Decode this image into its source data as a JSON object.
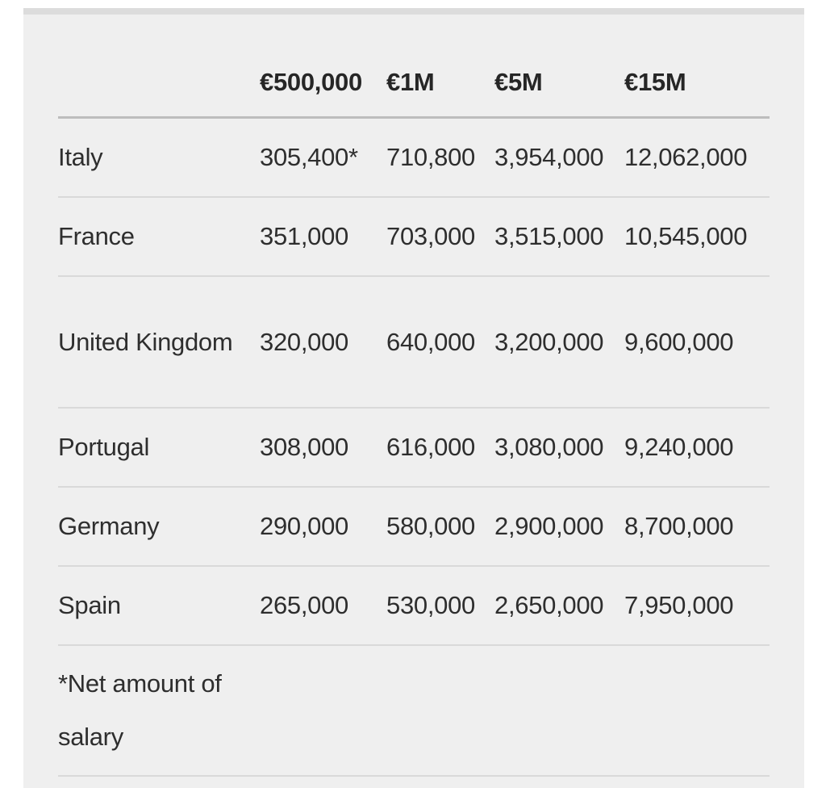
{
  "table": {
    "headers": [
      "",
      "€500,000",
      "€1M",
      "€5M",
      "€15M"
    ],
    "rows": [
      {
        "country": "Italy",
        "values": [
          "305,400*",
          "710,800",
          "3,954,000",
          "12,062,000"
        ]
      },
      {
        "country": "France",
        "values": [
          "351,000",
          "703,000",
          "3,515,000",
          "10,545,000"
        ]
      },
      {
        "country": "United Kingdom",
        "values": [
          "320,000",
          "640,000",
          "3,200,000",
          "9,600,000"
        ]
      },
      {
        "country": "Portugal",
        "values": [
          "308,000",
          "616,000",
          "3,080,000",
          "9,240,000"
        ]
      },
      {
        "country": "Germany",
        "values": [
          "290,000",
          "580,000",
          "2,900,000",
          "8,700,000"
        ]
      },
      {
        "country": "Spain",
        "values": [
          "265,000",
          "530,000",
          "2,650,000",
          "7,950,000"
        ]
      }
    ],
    "footnote": "*Net amount of salary"
  }
}
